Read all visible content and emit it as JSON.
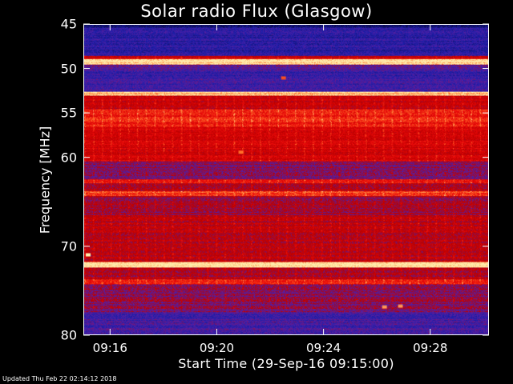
{
  "footer": {
    "updated": "Updated Thu Feb 22 02:14:12 2018"
  },
  "colors": {
    "background": "#000000",
    "text": "#ffffff",
    "low": "#20208c",
    "mid": "#c80000",
    "high": "#ffe6a0"
  },
  "chart_data": {
    "type": "heatmap",
    "title": "Solar radio Flux (Glasgow)",
    "xlabel": "Start Time (29-Sep-16 09:15:00)",
    "ylabel": "Frequency [MHz]",
    "x_range_minutes_after_start": [
      0,
      15.2
    ],
    "y_range_mhz": [
      45,
      80
    ],
    "y_axis_direction": "inverted",
    "x_ticks": [
      {
        "label": "09:16",
        "minute": 1
      },
      {
        "label": "09:20",
        "minute": 5
      },
      {
        "label": "09:24",
        "minute": 9
      },
      {
        "label": "09:28",
        "minute": 13
      }
    ],
    "y_ticks": [
      {
        "label": "45",
        "value": 45
      },
      {
        "label": "50",
        "value": 50
      },
      {
        "label": "55",
        "value": 55
      },
      {
        "label": "60",
        "value": 60
      },
      {
        "label": "70",
        "value": 70
      },
      {
        "label": "80",
        "value": 80
      }
    ],
    "bands": [
      {
        "from": 45.0,
        "to": 45.4,
        "intensity": 0.08
      },
      {
        "from": 45.4,
        "to": 48.5,
        "intensity": 0.22
      },
      {
        "from": 48.5,
        "to": 48.9,
        "intensity": 0.55
      },
      {
        "from": 48.9,
        "to": 49.5,
        "intensity": 1.0
      },
      {
        "from": 49.5,
        "to": 50.0,
        "intensity": 0.35
      },
      {
        "from": 50.0,
        "to": 52.6,
        "intensity": 0.28
      },
      {
        "from": 52.6,
        "to": 53.0,
        "intensity": 0.95
      },
      {
        "from": 53.0,
        "to": 54.5,
        "intensity": 0.55
      },
      {
        "from": 54.5,
        "to": 56.5,
        "intensity": 0.72
      },
      {
        "from": 56.5,
        "to": 60.5,
        "intensity": 0.6
      },
      {
        "from": 60.5,
        "to": 62.5,
        "intensity": 0.4
      },
      {
        "from": 62.5,
        "to": 62.9,
        "intensity": 0.7
      },
      {
        "from": 62.9,
        "to": 63.8,
        "intensity": 0.48
      },
      {
        "from": 63.8,
        "to": 64.3,
        "intensity": 0.78
      },
      {
        "from": 64.3,
        "to": 66.5,
        "intensity": 0.45
      },
      {
        "from": 66.5,
        "to": 71.8,
        "intensity": 0.52
      },
      {
        "from": 71.8,
        "to": 72.4,
        "intensity": 1.0
      },
      {
        "from": 72.4,
        "to": 73.8,
        "intensity": 0.5
      },
      {
        "from": 73.8,
        "to": 74.3,
        "intensity": 0.68
      },
      {
        "from": 74.3,
        "to": 77.5,
        "intensity": 0.42
      },
      {
        "from": 77.5,
        "to": 80.0,
        "intensity": 0.3
      }
    ],
    "hotspots": [
      {
        "minute": 5.9,
        "mhz": 59.4,
        "intensity": 0.85
      },
      {
        "minute": 7.5,
        "mhz": 51.0,
        "intensity": 0.8
      },
      {
        "minute": 0.15,
        "mhz": 71.0,
        "intensity": 1.0
      },
      {
        "minute": 11.3,
        "mhz": 76.9,
        "intensity": 0.9
      },
      {
        "minute": 11.9,
        "mhz": 76.8,
        "intensity": 0.9
      }
    ]
  }
}
